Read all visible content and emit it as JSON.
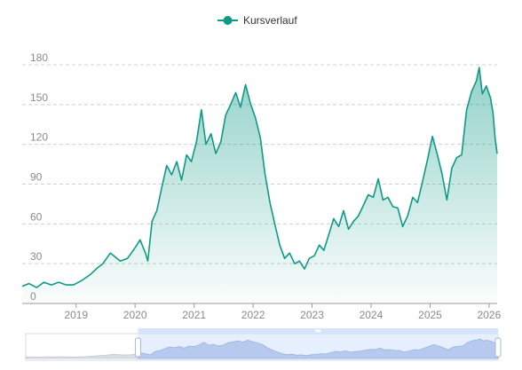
{
  "colors": {
    "series": "#0f9a86",
    "area_top": "#0f9a86",
    "grid": "#d0d0d0",
    "axis": "#9a9a9a",
    "tick_text": "#8a8a8a",
    "zoom_fill": "#d6e4fb",
    "zoom_border": "#b9c6df",
    "zoom_handle": "#aab8d2"
  },
  "chart_data": {
    "type": "area",
    "legend": {
      "label": "Kursverlauf",
      "position": "top-center"
    },
    "ylim": [
      0,
      180
    ],
    "yticks": [
      0,
      30,
      60,
      90,
      120,
      150,
      180
    ],
    "xlim": [
      "2018-02-01",
      "2026-02-20"
    ],
    "xticks": [
      "2019",
      "2020",
      "2021",
      "2022",
      "2023",
      "2024",
      "2025",
      "2026"
    ],
    "grid": "horizontal-dashed",
    "dataZoom": {
      "start": "2020-01-01",
      "end": "2026-02-20"
    },
    "series": [
      {
        "name": "Kursverlauf",
        "points": [
          [
            "2018-02-01",
            13
          ],
          [
            "2018-03-15",
            15
          ],
          [
            "2018-05-01",
            12
          ],
          [
            "2018-06-15",
            16
          ],
          [
            "2018-08-01",
            14
          ],
          [
            "2018-09-15",
            16
          ],
          [
            "2018-11-01",
            14
          ],
          [
            "2018-12-15",
            14
          ],
          [
            "2019-02-01",
            17
          ],
          [
            "2019-04-01",
            22
          ],
          [
            "2019-05-15",
            27
          ],
          [
            "2019-06-15",
            30
          ],
          [
            "2019-08-01",
            38
          ],
          [
            "2019-09-01",
            35
          ],
          [
            "2019-10-01",
            32
          ],
          [
            "2019-11-15",
            34
          ],
          [
            "2020-01-01",
            42
          ],
          [
            "2020-02-01",
            48
          ],
          [
            "2020-03-05",
            38
          ],
          [
            "2020-03-20",
            32
          ],
          [
            "2020-04-15",
            62
          ],
          [
            "2020-05-15",
            70
          ],
          [
            "2020-06-15",
            88
          ],
          [
            "2020-07-15",
            104
          ],
          [
            "2020-08-15",
            97
          ],
          [
            "2020-09-15",
            107
          ],
          [
            "2020-10-15",
            93
          ],
          [
            "2020-11-15",
            112
          ],
          [
            "2020-12-15",
            107
          ],
          [
            "2021-01-15",
            122
          ],
          [
            "2021-02-15",
            146
          ],
          [
            "2021-03-15",
            120
          ],
          [
            "2021-04-15",
            128
          ],
          [
            "2021-05-15",
            113
          ],
          [
            "2021-06-15",
            122
          ],
          [
            "2021-07-15",
            142
          ],
          [
            "2021-08-15",
            150
          ],
          [
            "2021-09-15",
            159
          ],
          [
            "2021-10-15",
            148
          ],
          [
            "2021-11-15",
            165
          ],
          [
            "2021-12-15",
            151
          ],
          [
            "2022-01-15",
            140
          ],
          [
            "2022-02-15",
            125
          ],
          [
            "2022-03-15",
            98
          ],
          [
            "2022-04-15",
            76
          ],
          [
            "2022-05-15",
            60
          ],
          [
            "2022-06-15",
            44
          ],
          [
            "2022-07-15",
            34
          ],
          [
            "2022-08-15",
            38
          ],
          [
            "2022-09-15",
            30
          ],
          [
            "2022-10-15",
            32
          ],
          [
            "2022-11-15",
            26
          ],
          [
            "2022-12-15",
            34
          ],
          [
            "2023-01-15",
            36
          ],
          [
            "2023-02-15",
            44
          ],
          [
            "2023-03-15",
            40
          ],
          [
            "2023-04-15",
            52
          ],
          [
            "2023-05-15",
            64
          ],
          [
            "2023-06-15",
            58
          ],
          [
            "2023-07-15",
            70
          ],
          [
            "2023-08-15",
            56
          ],
          [
            "2023-09-15",
            62
          ],
          [
            "2023-10-15",
            66
          ],
          [
            "2023-11-15",
            74
          ],
          [
            "2023-12-15",
            82
          ],
          [
            "2024-01-15",
            80
          ],
          [
            "2024-02-15",
            94
          ],
          [
            "2024-03-15",
            78
          ],
          [
            "2024-04-15",
            80
          ],
          [
            "2024-05-15",
            73
          ],
          [
            "2024-06-15",
            72
          ],
          [
            "2024-07-15",
            58
          ],
          [
            "2024-08-15",
            66
          ],
          [
            "2024-09-15",
            80
          ],
          [
            "2024-10-15",
            76
          ],
          [
            "2024-11-15",
            92
          ],
          [
            "2024-12-15",
            108
          ],
          [
            "2025-01-15",
            126
          ],
          [
            "2025-02-15",
            112
          ],
          [
            "2025-03-15",
            98
          ],
          [
            "2025-04-15",
            78
          ],
          [
            "2025-05-15",
            102
          ],
          [
            "2025-06-15",
            110
          ],
          [
            "2025-07-15",
            112
          ],
          [
            "2025-08-15",
            146
          ],
          [
            "2025-09-15",
            160
          ],
          [
            "2025-10-15",
            168
          ],
          [
            "2025-11-01",
            178
          ],
          [
            "2025-11-20",
            158
          ],
          [
            "2025-12-15",
            164
          ],
          [
            "2026-01-10",
            155
          ],
          [
            "2026-01-25",
            144
          ],
          [
            "2026-02-08",
            124
          ],
          [
            "2026-02-20",
            113
          ]
        ]
      }
    ]
  }
}
